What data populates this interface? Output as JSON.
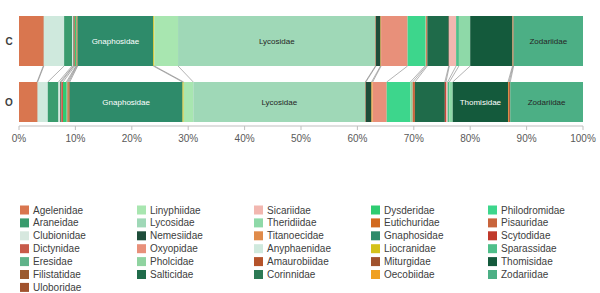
{
  "chart_data": {
    "type": "bar",
    "orientation": "horizontal",
    "stacked": true,
    "legend": "bottom",
    "data_labels": false,
    "categories": [
      "C",
      "O"
    ],
    "xlim": [
      0,
      100
    ],
    "xticks": [
      {
        "value": 0,
        "label": "0%"
      },
      {
        "value": 10,
        "label": "10%"
      },
      {
        "value": 20,
        "label": "20%"
      },
      {
        "value": 30,
        "label": "30%"
      },
      {
        "value": 40,
        "label": "40%"
      },
      {
        "value": 50,
        "label": "50%"
      },
      {
        "value": 60,
        "label": "60%"
      },
      {
        "value": 70,
        "label": "70%"
      },
      {
        "value": 80,
        "label": "80%"
      },
      {
        "value": 90,
        "label": "90%"
      },
      {
        "value": 100,
        "label": "100%"
      }
    ],
    "series": [
      {
        "name": "Agelenidae",
        "color": "#d9764f",
        "values": [
          4.3,
          3.2
        ]
      },
      {
        "name": "Amaurobiidae",
        "color": "#b5532a",
        "values": [
          0.1,
          0.1
        ]
      },
      {
        "name": "Anyphaenidae",
        "color": "#cfe9dd",
        "values": [
          3.6,
          1.8
        ]
      },
      {
        "name": "Araneidae",
        "color": "#3a9c6e",
        "values": [
          1.4,
          1.9
        ]
      },
      {
        "name": "Clubionidae",
        "color": "#d7e8df",
        "values": [
          0.2,
          0.3
        ]
      },
      {
        "name": "Corinnidae",
        "color": "#2d7a55",
        "values": [
          0.1,
          0.2
        ]
      },
      {
        "name": "Dictynidae",
        "color": "#c85a4a",
        "values": [
          0.2,
          0.3
        ]
      },
      {
        "name": "Dysderidae",
        "color": "#2ecc71",
        "values": [
          0.2,
          0.6
        ]
      },
      {
        "name": "Eresidae",
        "color": "#5fb38a",
        "values": [
          0.1,
          0.2
        ]
      },
      {
        "name": "Eutichuridae",
        "color": "#d2691e",
        "values": [
          0.1,
          0.2
        ]
      },
      {
        "name": "Filistatidae",
        "color": "#9b5a2e",
        "values": [
          0.1,
          0.2
        ]
      },
      {
        "name": "Gnaphosidae",
        "color": "#2e8b6a",
        "values": [
          13.4,
          20.0
        ]
      },
      {
        "name": "Liocranidae",
        "color": "#d4c21a",
        "values": [
          0.2,
          0.2
        ]
      },
      {
        "name": "Linyphiidae",
        "color": "#a8e6b0",
        "values": [
          4.2,
          1.7
        ]
      },
      {
        "name": "Lycosidae",
        "color": "#9fd8b7",
        "values": [
          35.0,
          30.5
        ]
      },
      {
        "name": "Miturgidae",
        "color": "#a0522d",
        "values": [
          0.1,
          0.1
        ]
      },
      {
        "name": "Nemesiidae",
        "color": "#1e4d3a",
        "values": [
          0.8,
          1.0
        ]
      },
      {
        "name": "Oecobiidae",
        "color": "#f0a020",
        "values": [
          0.1,
          0.2
        ]
      },
      {
        "name": "Oxyopidae",
        "color": "#e8907a",
        "values": [
          4.7,
          2.5
        ]
      },
      {
        "name": "Philodromidae",
        "color": "#3dd68c",
        "values": [
          3.1,
          4.2
        ]
      },
      {
        "name": "Pholcidae",
        "color": "#8fd3a0",
        "values": [
          0.2,
          0.4
        ]
      },
      {
        "name": "Pisauridae",
        "color": "#c8643c",
        "values": [
          0.2,
          0.4
        ]
      },
      {
        "name": "Salticidae",
        "color": "#1f6b4a",
        "values": [
          3.8,
          5.3
        ]
      },
      {
        "name": "Scytodidae",
        "color": "#c0392b",
        "values": [
          0.1,
          0.2
        ]
      },
      {
        "name": "Sicariidae",
        "color": "#f2b7b0",
        "values": [
          1.2,
          0.3
        ]
      },
      {
        "name": "Sparassidae",
        "color": "#4fbf8a",
        "values": [
          0.5,
          0.3
        ]
      },
      {
        "name": "Theridiidae",
        "color": "#8ed9a8",
        "values": [
          2.0,
          0.6
        ]
      },
      {
        "name": "Thomisidae",
        "color": "#145a3c",
        "values": [
          7.5,
          9.8
        ]
      },
      {
        "name": "Titanoecidae",
        "color": "#e08b4a",
        "values": [
          0.1,
          0.2
        ]
      },
      {
        "name": "Uloboridae",
        "color": "#a0522d",
        "values": [
          0.1,
          0.2
        ]
      },
      {
        "name": "Zodariidae",
        "color": "#4caf85",
        "values": [
          12.3,
          12.9
        ]
      }
    ]
  }
}
